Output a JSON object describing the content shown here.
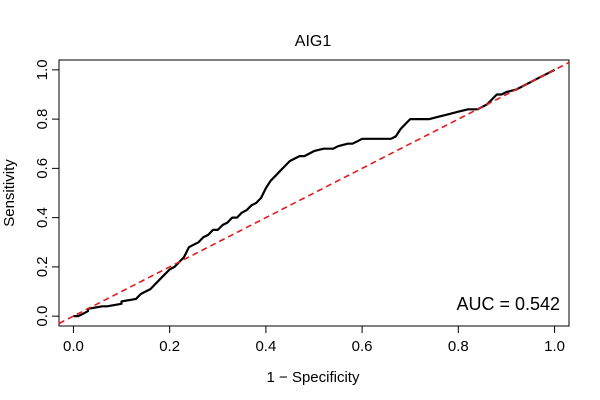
{
  "chart_data": {
    "type": "line",
    "title": "AIG1",
    "xlabel": "1 − Specificity",
    "ylabel": "Sensitivity",
    "xlim": [
      -0.03,
      1.03
    ],
    "ylim": [
      -0.04,
      1.04
    ],
    "x_ticks": [
      0.0,
      0.2,
      0.4,
      0.6,
      0.8,
      1.0
    ],
    "y_ticks": [
      0.0,
      0.2,
      0.4,
      0.6,
      0.8,
      1.0
    ],
    "x_tick_labels": [
      "0.0",
      "0.2",
      "0.4",
      "0.6",
      "0.8",
      "1.0"
    ],
    "y_tick_labels": [
      "0.0",
      "0.2",
      "0.4",
      "0.6",
      "0.8",
      "1.0"
    ],
    "grid": false,
    "annotation": "AUC = 0.542",
    "series": [
      {
        "color": "#000000",
        "style": "solid",
        "x": [
          0.0,
          0.01,
          0.02,
          0.03,
          0.03,
          0.06,
          0.07,
          0.1,
          0.1,
          0.13,
          0.14,
          0.15,
          0.16,
          0.18,
          0.19,
          0.2,
          0.21,
          0.22,
          0.23,
          0.24,
          0.25,
          0.26,
          0.27,
          0.28,
          0.29,
          0.3,
          0.31,
          0.32,
          0.33,
          0.34,
          0.35,
          0.36,
          0.37,
          0.38,
          0.39,
          0.4,
          0.41,
          0.42,
          0.43,
          0.44,
          0.45,
          0.46,
          0.47,
          0.48,
          0.49,
          0.5,
          0.52,
          0.54,
          0.55,
          0.57,
          0.58,
          0.59,
          0.6,
          0.62,
          0.64,
          0.66,
          0.67,
          0.68,
          0.69,
          0.7,
          0.72,
          0.74,
          0.76,
          0.78,
          0.8,
          0.82,
          0.84,
          0.85,
          0.86,
          0.87,
          0.88,
          0.89,
          0.9,
          0.92,
          0.94,
          0.95,
          0.97,
          0.98,
          0.99,
          1.0
        ],
        "y": [
          0.0,
          0.0,
          0.01,
          0.02,
          0.03,
          0.04,
          0.04,
          0.05,
          0.06,
          0.07,
          0.09,
          0.1,
          0.11,
          0.15,
          0.17,
          0.19,
          0.2,
          0.22,
          0.24,
          0.28,
          0.29,
          0.3,
          0.32,
          0.33,
          0.35,
          0.35,
          0.37,
          0.38,
          0.4,
          0.4,
          0.42,
          0.43,
          0.45,
          0.46,
          0.48,
          0.52,
          0.55,
          0.57,
          0.59,
          0.61,
          0.63,
          0.64,
          0.65,
          0.65,
          0.66,
          0.67,
          0.68,
          0.68,
          0.69,
          0.7,
          0.7,
          0.71,
          0.72,
          0.72,
          0.72,
          0.72,
          0.73,
          0.76,
          0.78,
          0.8,
          0.8,
          0.8,
          0.81,
          0.82,
          0.83,
          0.84,
          0.84,
          0.85,
          0.86,
          0.88,
          0.9,
          0.9,
          0.91,
          0.92,
          0.94,
          0.95,
          0.97,
          0.98,
          0.99,
          1.0
        ]
      },
      {
        "color": "#e31a1c",
        "style": "dashed",
        "x": [
          -0.03,
          1.03
        ],
        "y": [
          -0.03,
          1.03
        ]
      }
    ]
  }
}
